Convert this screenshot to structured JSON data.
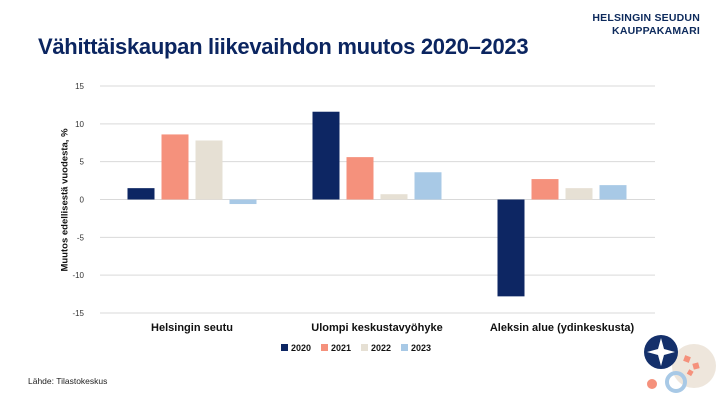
{
  "brand": {
    "line1": "HELSINGIN SEUDUN",
    "line2": "KAUPPAKAMARI"
  },
  "source": "Lähde: Tilastokeskus",
  "colors": {
    "title": "#0b2560",
    "grid": "#d9d9d9"
  },
  "chart_data": {
    "type": "bar",
    "title": "Vähittäiskaupan liikevaihdon muutos 2020–2023",
    "ylabel": "Muutos edellisestä vuodesta, %",
    "xlabel": "",
    "ylim": [
      -15,
      15
    ],
    "yticks": [
      15,
      10,
      5,
      0,
      -5,
      -10,
      -15
    ],
    "grid": true,
    "legend": "bottom",
    "categories": [
      "Helsingin seutu",
      "Ulompi keskustavyöhyke",
      "Aleksin alue (ydinkeskusta)"
    ],
    "series": [
      {
        "name": "2020",
        "color": "#0d2663",
        "values": [
          1.5,
          11.6,
          -12.8
        ]
      },
      {
        "name": "2021",
        "color": "#f5917c",
        "values": [
          8.6,
          5.6,
          2.7
        ]
      },
      {
        "name": "2022",
        "color": "#e6e0d4",
        "values": [
          7.8,
          0.7,
          1.5
        ]
      },
      {
        "name": "2023",
        "color": "#a8c9e6",
        "values": [
          -0.6,
          3.6,
          1.9
        ]
      }
    ]
  }
}
